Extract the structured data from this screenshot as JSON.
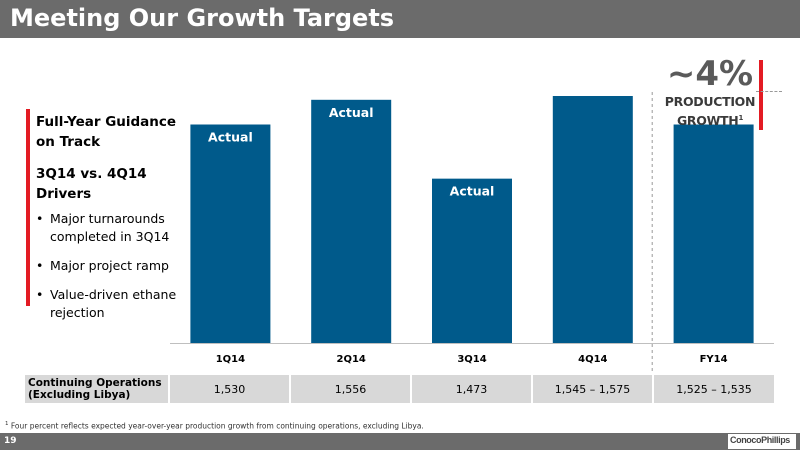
{
  "page": {
    "title": "Meeting Our Growth Targets",
    "page_number": "19",
    "logo_text": "ConocoPhillips",
    "footnote_marker": "1",
    "footnote": "Four percent reflects expected year-over-year production growth from continuing operations, excluding Libya."
  },
  "left_panel": {
    "heading": "Full-Year Guidance on Track",
    "subheading": "3Q14 vs. 4Q14 Drivers",
    "bullets": [
      "Major turnarounds completed in 3Q14",
      "Major project ramp",
      "Value-driven ethane rejection"
    ]
  },
  "callout": {
    "value": "~4%",
    "label_line1": "PRODUCTION",
    "label_line2": "GROWTH",
    "label_superscript": "1"
  },
  "colors": {
    "bar": "#005A8B",
    "accent_red": "#E31B23",
    "title_bar": "#6B6B6B"
  },
  "chart_data": {
    "type": "bar",
    "categories": [
      "1Q14",
      "2Q14",
      "3Q14",
      "4Q14",
      "FY14"
    ],
    "values": [
      1530,
      1556,
      1473,
      1560,
      1530
    ],
    "bar_labels": [
      "Actual",
      "Actual",
      "Actual",
      "",
      ""
    ],
    "ylim": [
      1300,
      1600
    ],
    "grid": false,
    "table": {
      "row_header": "Continuing Operations (Excluding Libya)",
      "cells": [
        "1,530",
        "1,556",
        "1,473",
        "1,545 – 1,575",
        "1,525 – 1,535"
      ]
    }
  }
}
